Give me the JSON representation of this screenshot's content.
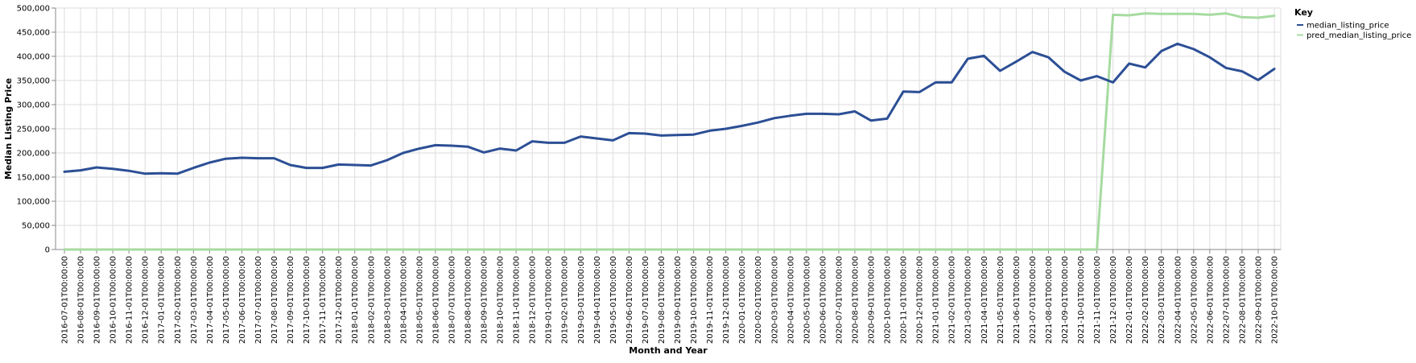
{
  "chart_data": {
    "type": "line",
    "xlabel": "Month and Year",
    "ylabel": "Median Listing Price",
    "ylim": [
      0,
      500000
    ],
    "yticks": [
      "0",
      "50,000",
      "100,000",
      "150,000",
      "200,000",
      "250,000",
      "300,000",
      "350,000",
      "400,000",
      "450,000",
      "500,000"
    ],
    "grid": true,
    "legend": {
      "title": "Key",
      "placement": "top-right"
    },
    "x": [
      "2016-07-01T00:00:00",
      "2016-08-01T00:00:00",
      "2016-09-01T00:00:00",
      "2016-10-01T00:00:00",
      "2016-11-01T00:00:00",
      "2016-12-01T00:00:00",
      "2017-01-01T00:00:00",
      "2017-02-01T00:00:00",
      "2017-03-01T00:00:00",
      "2017-04-01T00:00:00",
      "2017-05-01T00:00:00",
      "2017-06-01T00:00:00",
      "2017-07-01T00:00:00",
      "2017-08-01T00:00:00",
      "2017-09-01T00:00:00",
      "2017-10-01T00:00:00",
      "2017-11-01T00:00:00",
      "2017-12-01T00:00:00",
      "2018-01-01T00:00:00",
      "2018-02-01T00:00:00",
      "2018-03-01T00:00:00",
      "2018-04-01T00:00:00",
      "2018-05-01T00:00:00",
      "2018-06-01T00:00:00",
      "2018-07-01T00:00:00",
      "2018-08-01T00:00:00",
      "2018-09-01T00:00:00",
      "2018-10-01T00:00:00",
      "2018-11-01T00:00:00",
      "2018-12-01T00:00:00",
      "2019-01-01T00:00:00",
      "2019-02-01T00:00:00",
      "2019-03-01T00:00:00",
      "2019-04-01T00:00:00",
      "2019-05-01T00:00:00",
      "2019-06-01T00:00:00",
      "2019-07-01T00:00:00",
      "2019-08-01T00:00:00",
      "2019-09-01T00:00:00",
      "2019-10-01T00:00:00",
      "2019-11-01T00:00:00",
      "2019-12-01T00:00:00",
      "2020-01-01T00:00:00",
      "2020-02-01T00:00:00",
      "2020-03-01T00:00:00",
      "2020-04-01T00:00:00",
      "2020-05-01T00:00:00",
      "2020-06-01T00:00:00",
      "2020-07-01T00:00:00",
      "2020-08-01T00:00:00",
      "2020-09-01T00:00:00",
      "2020-10-01T00:00:00",
      "2020-11-01T00:00:00",
      "2020-12-01T00:00:00",
      "2021-01-01T00:00:00",
      "2021-02-01T00:00:00",
      "2021-03-01T00:00:00",
      "2021-04-01T00:00:00",
      "2021-05-01T00:00:00",
      "2021-06-01T00:00:00",
      "2021-07-01T00:00:00",
      "2021-08-01T00:00:00",
      "2021-09-01T00:00:00",
      "2021-10-01T00:00:00",
      "2021-11-01T00:00:00",
      "2021-12-01T00:00:00",
      "2022-01-01T00:00:00",
      "2022-02-01T00:00:00",
      "2022-03-01T00:00:00",
      "2022-04-01T00:00:00",
      "2022-05-01T00:00:00",
      "2022-06-01T00:00:00",
      "2022-07-01T00:00:00",
      "2022-08-01T00:00:00",
      "2022-09-01T00:00:00",
      "2022-10-01T00:00:00"
    ],
    "series": [
      {
        "name": "median_listing_price",
        "color": "#2c4f95",
        "values": [
          161000,
          164000,
          170000,
          167000,
          163000,
          157000,
          158000,
          157000,
          169000,
          180000,
          188000,
          190000,
          189000,
          189000,
          175000,
          169000,
          169000,
          176000,
          175000,
          174000,
          185000,
          200000,
          209000,
          216000,
          215000,
          213000,
          201000,
          209000,
          205000,
          224000,
          221000,
          221000,
          234000,
          230000,
          226000,
          241000,
          240000,
          236000,
          237000,
          238000,
          246000,
          250000,
          256000,
          263000,
          272000,
          277000,
          281000,
          281000,
          280000,
          286000,
          267000,
          271000,
          327000,
          326000,
          346000,
          346000,
          395000,
          401000,
          370000,
          389000,
          409000,
          398000,
          368000,
          350000,
          359000,
          346000,
          385000,
          377000,
          411000,
          426000,
          415000,
          398000,
          376000,
          369000,
          351000,
          374000
        ]
      },
      {
        "name": "pred_median_listing_price",
        "color": "#a6dba0",
        "values": [
          0,
          0,
          0,
          0,
          0,
          0,
          0,
          0,
          0,
          0,
          0,
          0,
          0,
          0,
          0,
          0,
          0,
          0,
          0,
          0,
          0,
          0,
          0,
          0,
          0,
          0,
          0,
          0,
          0,
          0,
          0,
          0,
          0,
          0,
          0,
          0,
          0,
          0,
          0,
          0,
          0,
          0,
          0,
          0,
          0,
          0,
          0,
          0,
          0,
          0,
          0,
          0,
          0,
          0,
          0,
          0,
          0,
          0,
          0,
          0,
          0,
          0,
          0,
          0,
          0,
          486000,
          485000,
          489000,
          488000,
          488000,
          488000,
          486000,
          489000,
          481000,
          480000,
          484000
        ]
      }
    ]
  }
}
